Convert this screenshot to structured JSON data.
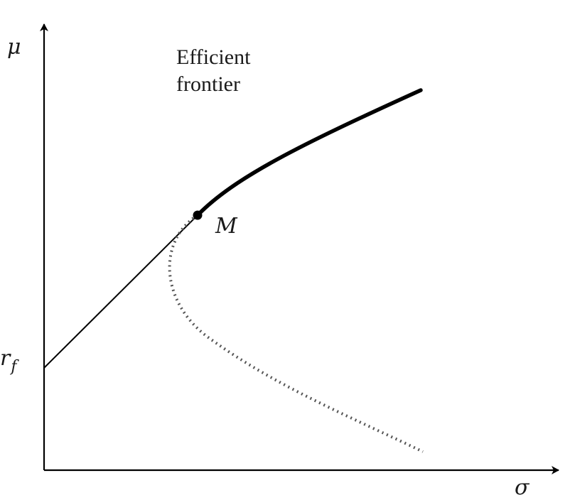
{
  "axes": {
    "y_label": "μ",
    "x_label": "σ"
  },
  "labels": {
    "frontier_line1": "Efficient",
    "frontier_line2": "frontier",
    "tangency_point": "M",
    "risk_free_base": "r",
    "risk_free_sub": "f"
  },
  "colors": {
    "stroke": "#000000",
    "text": "#1a1a1a",
    "background": "#ffffff"
  }
}
